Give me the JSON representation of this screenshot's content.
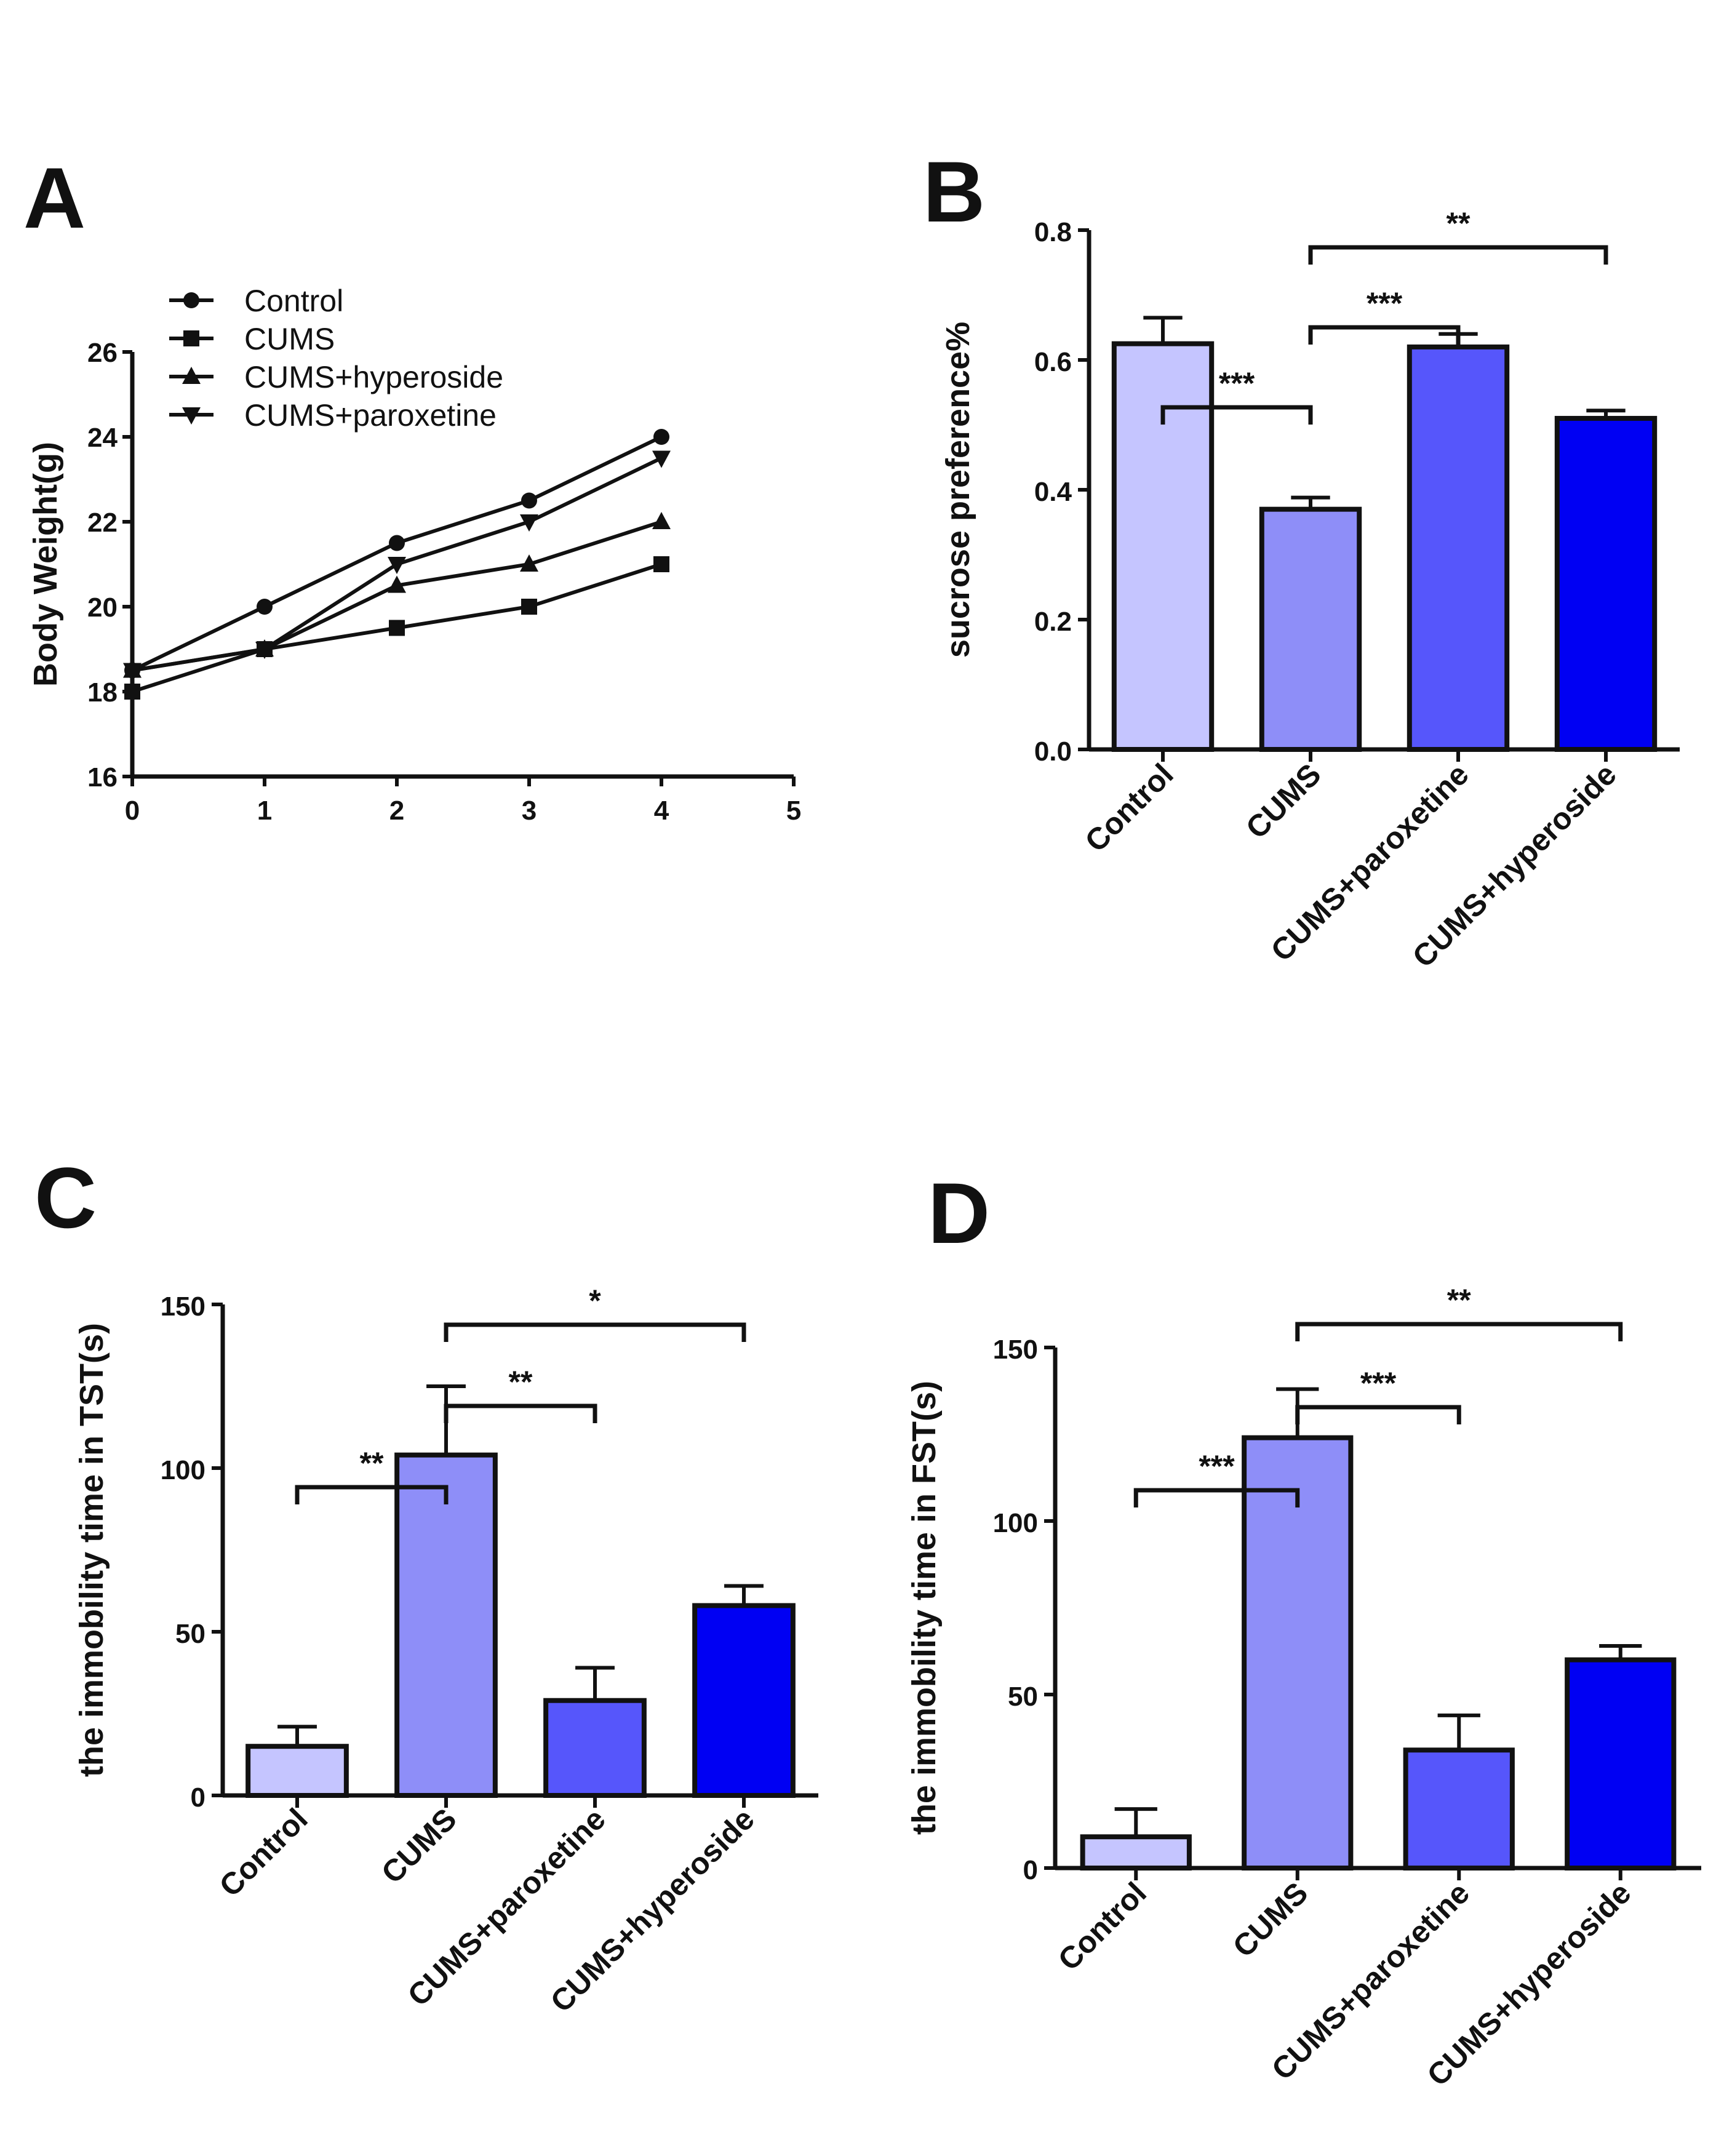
{
  "chart_data": [
    {
      "panel": "A",
      "type": "line",
      "xlabel": "",
      "ylabel": "Body Weight(g)",
      "xlim": [
        0,
        5
      ],
      "ylim": [
        16,
        26
      ],
      "xticks": [
        "0",
        "1",
        "2",
        "3",
        "4",
        "5"
      ],
      "yticks": [
        "16",
        "18",
        "20",
        "22",
        "24",
        "26"
      ],
      "legend_position": "top-left",
      "x": [
        0,
        1,
        2,
        3,
        4
      ],
      "series": [
        {
          "name": "Control",
          "marker": "circle",
          "values": [
            18.5,
            20.0,
            21.5,
            22.5,
            24.0
          ]
        },
        {
          "name": "CUMS",
          "marker": "square",
          "values": [
            18.0,
            19.0,
            19.5,
            20.0,
            21.0
          ]
        },
        {
          "name": "CUMS+hyperoside",
          "marker": "triangle-up",
          "values": [
            18.5,
            19.0,
            20.5,
            21.0,
            22.0
          ]
        },
        {
          "name": "CUMS+paroxetine",
          "marker": "triangle-down",
          "values": [
            18.5,
            19.0,
            21.0,
            22.0,
            23.5
          ]
        }
      ]
    },
    {
      "panel": "B",
      "type": "bar",
      "ylabel": "sucrose preference%",
      "ylim": [
        0,
        0.8
      ],
      "yticks": [
        "0.0",
        "0.2",
        "0.4",
        "0.6",
        "0.8"
      ],
      "categories": [
        "Control",
        "CUMS",
        "CUMS+paroxetine",
        "CUMS+hyperoside"
      ],
      "values": [
        0.625,
        0.37,
        0.62,
        0.51
      ],
      "errors": [
        0.04,
        0.018,
        0.02,
        0.012
      ],
      "colors": [
        "#c5c5ff",
        "#8e8ef8",
        "#5656fb",
        "#0000f3"
      ],
      "significance": [
        {
          "from": 0,
          "to": 1,
          "label": "***"
        },
        {
          "from": 1,
          "to": 2,
          "label": "***"
        },
        {
          "from": 1,
          "to": 3,
          "label": "**"
        }
      ]
    },
    {
      "panel": "C",
      "type": "bar",
      "ylabel": "the immobility time in TST(s)",
      "ylim": [
        0,
        150
      ],
      "yticks": [
        "0",
        "50",
        "100",
        "150"
      ],
      "categories": [
        "Control",
        "CUMS",
        "CUMS+paroxetine",
        "CUMS+hyperoside"
      ],
      "values": [
        15,
        104,
        29,
        58
      ],
      "errors": [
        6,
        21,
        10,
        6
      ],
      "colors": [
        "#c5c5ff",
        "#8e8ef8",
        "#5656fb",
        "#0000f3"
      ],
      "significance": [
        {
          "from": 0,
          "to": 1,
          "label": "**"
        },
        {
          "from": 1,
          "to": 2,
          "label": "**"
        },
        {
          "from": 1,
          "to": 3,
          "label": "*"
        }
      ]
    },
    {
      "panel": "D",
      "type": "bar",
      "ylabel": "the immobility time in FST(s)",
      "ylim": [
        0,
        150
      ],
      "yticks": [
        "0",
        "50",
        "100",
        "150"
      ],
      "categories": [
        "Control",
        "CUMS",
        "CUMS+paroxetine",
        "CUMS+hyperoside"
      ],
      "values": [
        9,
        124,
        34,
        60
      ],
      "errors": [
        8,
        14,
        10,
        4
      ],
      "colors": [
        "#c5c5ff",
        "#8e8ef8",
        "#5656fb",
        "#0000f3"
      ],
      "significance": [
        {
          "from": 0,
          "to": 1,
          "label": "***"
        },
        {
          "from": 1,
          "to": 2,
          "label": "***"
        },
        {
          "from": 1,
          "to": 3,
          "label": "**"
        }
      ]
    }
  ]
}
